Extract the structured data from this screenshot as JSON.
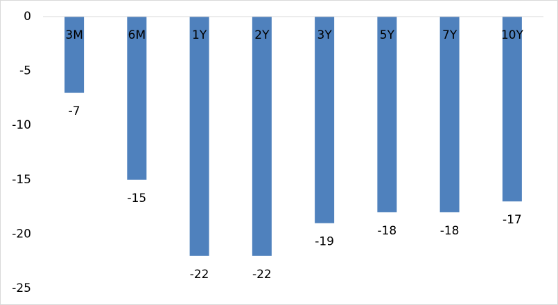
{
  "chart_data": {
    "type": "bar",
    "categories": [
      "3M",
      "6M",
      "1Y",
      "2Y",
      "3Y",
      "5Y",
      "7Y",
      "10Y"
    ],
    "values": [
      -7,
      -15,
      -22,
      -22,
      -19,
      -18,
      -18,
      -17
    ],
    "color": "#4f81bd",
    "ylim": [
      -25,
      0
    ],
    "yticks": [
      0,
      -5,
      -10,
      -15,
      -20,
      -25
    ],
    "grid": false
  }
}
